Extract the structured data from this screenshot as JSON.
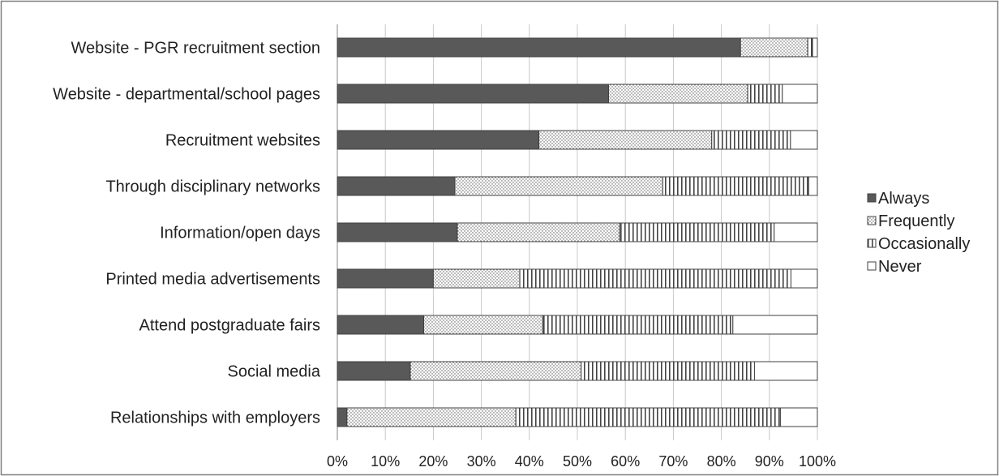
{
  "chart_data": {
    "type": "bar",
    "orientation": "horizontal",
    "stacked": true,
    "categories": [
      "Website - PGR recruitment section",
      "Website - departmental/school pages",
      "Recruitment websites",
      "Through disciplinary networks",
      "Information/open days",
      "Printed media advertisements",
      "Attend postgraduate fairs",
      "Social media",
      "Relationships with employers"
    ],
    "series": [
      {
        "name": "Always",
        "values": [
          84,
          56.5,
          42,
          24.5,
          25,
          20,
          18,
          15.2,
          2
        ],
        "color": "#595959",
        "pattern": "solid"
      },
      {
        "name": "Frequently",
        "values": [
          14,
          29,
          36,
          43.3,
          33.8,
          18,
          24.8,
          35.6,
          35.2
        ],
        "color": "#bfbfbf",
        "pattern": "dotted"
      },
      {
        "name": "Occasionally",
        "values": [
          1,
          7.2,
          16.4,
          30.4,
          32.2,
          56.5,
          39.6,
          36.1,
          55.1
        ],
        "color": "#808080",
        "pattern": "vertical-lines"
      },
      {
        "name": "Never",
        "values": [
          1,
          7.3,
          5.6,
          1.8,
          9,
          5.5,
          17.6,
          13.1,
          7.7
        ],
        "color": "#ffffff",
        "pattern": "empty"
      }
    ],
    "xlim": [
      0,
      100
    ],
    "x_ticks": [
      "0%",
      "10%",
      "20%",
      "30%",
      "40%",
      "50%",
      "60%",
      "70%",
      "80%",
      "90%",
      "100%"
    ],
    "title": "",
    "xlabel": "",
    "ylabel": "",
    "grid": "vertical",
    "legend_position": "right"
  }
}
